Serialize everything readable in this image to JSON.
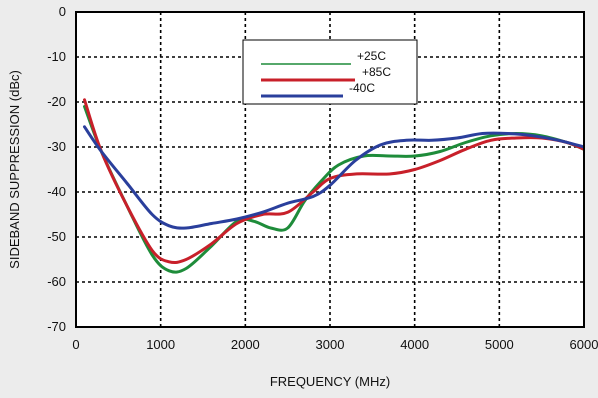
{
  "chart_data": {
    "type": "line",
    "title": "",
    "xlabel": "FREQUENCY (MHz)",
    "ylabel": "SIDEBAND SUPPRESSION (dBc)",
    "xlim": [
      0,
      6000
    ],
    "ylim": [
      -70,
      0
    ],
    "x_ticks": [
      0,
      1000,
      2000,
      3000,
      4000,
      5000,
      6000
    ],
    "y_ticks": [
      0,
      -10,
      -20,
      -30,
      -40,
      -50,
      -60,
      -70
    ],
    "grid": true,
    "legend_position": "top-center",
    "series": [
      {
        "name": "+25C",
        "color": "#1e8c3a",
        "x": [
          100,
          300,
          600,
          900,
          1100,
          1300,
          1600,
          1900,
          2100,
          2300,
          2500,
          2700,
          2900,
          3100,
          3400,
          3700,
          4000,
          4300,
          4600,
          4900,
          5200,
          5500,
          5800,
          6000
        ],
        "y": [
          -21,
          -31,
          -43,
          -54,
          -57.5,
          -57,
          -52,
          -46.5,
          -46.5,
          -48,
          -48,
          -42,
          -37.5,
          -34,
          -32,
          -32,
          -32,
          -31,
          -29,
          -27.5,
          -27,
          -27.5,
          -29,
          -30.5
        ]
      },
      {
        "name": "+85C",
        "color": "#c8202a",
        "x": [
          100,
          300,
          600,
          900,
          1100,
          1300,
          1600,
          1900,
          2200,
          2500,
          2800,
          3000,
          3300,
          3700,
          4000,
          4300,
          4600,
          4900,
          5200,
          5500,
          5800,
          6000
        ],
        "y": [
          -19.5,
          -31,
          -43,
          -53,
          -55.5,
          -55,
          -51.5,
          -47,
          -45,
          -44.5,
          -40,
          -37,
          -36,
          -36,
          -35,
          -33,
          -30.5,
          -28.5,
          -28,
          -28,
          -29,
          -30.5
        ]
      },
      {
        "name": "-40C",
        "color": "#2a3f9c",
        "x": [
          100,
          300,
          600,
          900,
          1100,
          1300,
          1600,
          1900,
          2200,
          2500,
          2800,
          3000,
          3300,
          3600,
          3900,
          4200,
          4500,
          4800,
          5100,
          5400,
          5700,
          6000
        ],
        "y": [
          -25.5,
          -31,
          -38,
          -45,
          -47.5,
          -48,
          -47,
          -46,
          -44.5,
          -42.5,
          -41,
          -38.5,
          -33,
          -29.5,
          -28.5,
          -28.5,
          -28,
          -27,
          -27,
          -27.5,
          -28.5,
          -30
        ]
      }
    ]
  }
}
